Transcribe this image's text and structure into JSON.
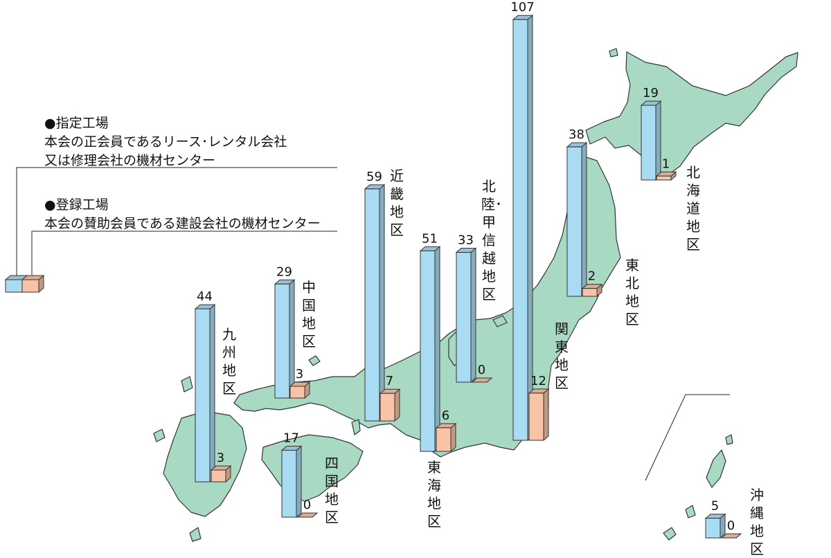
{
  "legend": {
    "designated": {
      "title": "●指定工場",
      "desc": "本会の正会員であるリース･レンタル会社",
      "desc2": "又は修理会社の機材センター"
    },
    "registered": {
      "title": "●登録工場",
      "desc": "本会の賛助会員である建設会社の機材センター"
    }
  },
  "colors": {
    "designated": "#a9dcf3",
    "registered": "#f8c3a6",
    "map": "#a8dac3"
  },
  "chart_data": {
    "type": "bar",
    "categories": [
      "北海道地区",
      "東北地区",
      "関東地区",
      "北陸･甲信越地区",
      "東海地区",
      "近畿地区",
      "中国地区",
      "四国地区",
      "九州地区",
      "沖縄地区"
    ],
    "series": [
      {
        "name": "指定工場",
        "values": [
          19,
          38,
          107,
          33,
          51,
          59,
          29,
          17,
          44,
          5
        ]
      },
      {
        "name": "登録工場",
        "values": [
          1,
          2,
          12,
          0,
          6,
          7,
          3,
          0,
          3,
          0
        ]
      }
    ]
  }
}
